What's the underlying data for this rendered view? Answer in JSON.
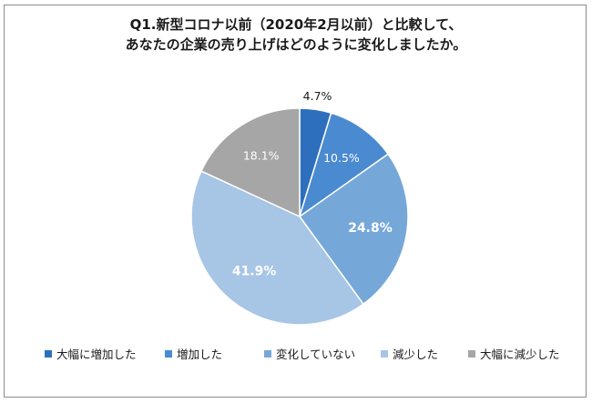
{
  "chart_data": {
    "type": "pie",
    "title_lines": [
      "Q1.新型コロナ以前（2020年2月以前）と比較して、",
      "あなたの企業の売り上げはどのように変化しましたか。"
    ],
    "categories": [
      "大幅に増加した",
      "増加した",
      "変化していない",
      "減少した",
      "大幅に減少した"
    ],
    "values": [
      4.7,
      10.5,
      24.8,
      41.9,
      18.1
    ],
    "labels": [
      "4.7%",
      "10.5%",
      "24.8%",
      "41.9%",
      "18.1%"
    ],
    "colors": [
      "#2e6fbd",
      "#4a8ad0",
      "#75a8d8",
      "#a7c5e5",
      "#a6a6a6"
    ],
    "label_colors": [
      "#1a1a1a",
      "#ffffff",
      "#ffffff",
      "#ffffff",
      "#ffffff"
    ],
    "legend_position": "bottom"
  }
}
